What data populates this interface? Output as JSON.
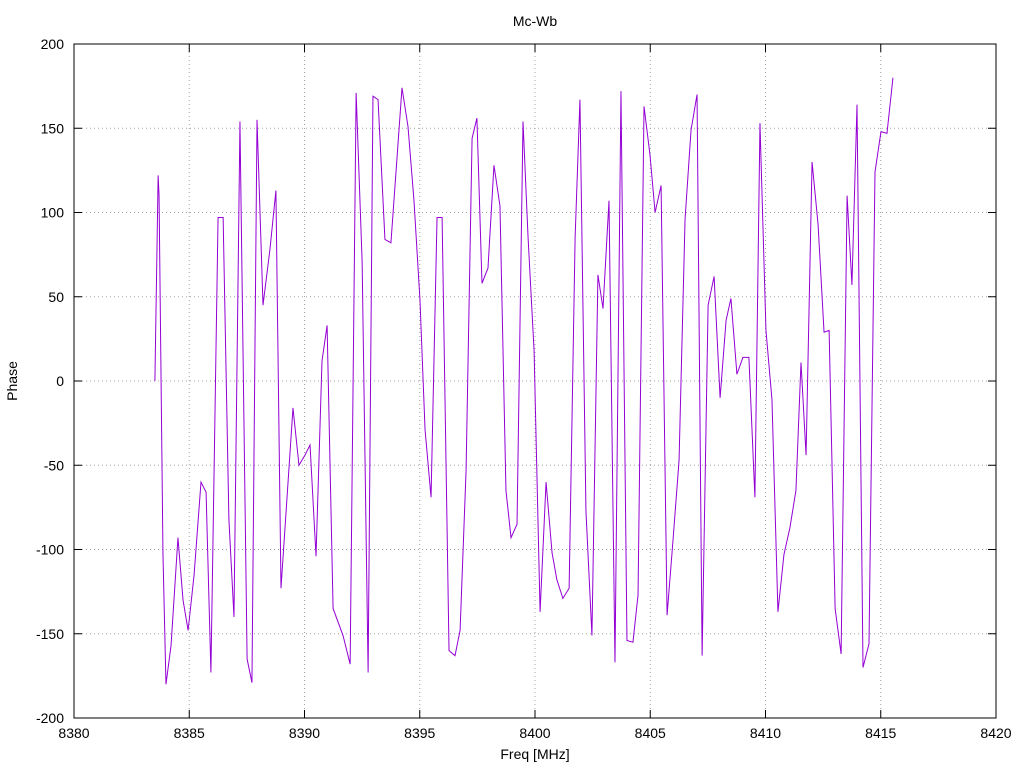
{
  "chart_data": {
    "type": "line",
    "title": "Mc-Wb",
    "x_label": "Freq [MHz]",
    "y_label": "Phase",
    "x": [
      8383.51,
      8383.65,
      8383.69,
      8383.86,
      8383.99,
      8384.21,
      8384.51,
      8384.73,
      8384.95,
      8385.21,
      8385.51,
      8385.73,
      8385.94,
      8386.25,
      8386.47,
      8386.72,
      8386.94,
      8387.2,
      8387.51,
      8387.72,
      8387.94,
      8388.2,
      8388.5,
      8388.76,
      8388.98,
      8389.5,
      8389.76,
      8390.02,
      8390.24,
      8390.5,
      8390.76,
      8390.98,
      8391.24,
      8391.67,
      8391.98,
      8392.24,
      8392.5,
      8392.76,
      8392.97,
      8393.19,
      8393.49,
      8393.75,
      8394.23,
      8394.49,
      8394.75,
      8395.01,
      8395.23,
      8395.49,
      8395.75,
      8395.97,
      8396.27,
      8396.53,
      8396.75,
      8397.01,
      8397.27,
      8397.48,
      8397.7,
      8397.96,
      8398.22,
      8398.48,
      8398.74,
      8398.96,
      8399.22,
      8399.48,
      8399.7,
      8399.96,
      8400.22,
      8400.48,
      8400.74,
      8400.95,
      8401.21,
      8401.48,
      8401.74,
      8401.95,
      8402.21,
      8402.47,
      8402.73,
      8402.95,
      8403.21,
      8403.47,
      8403.73,
      8403.99,
      8404.25,
      8404.47,
      8404.73,
      8404.99,
      8405.21,
      8405.47,
      8405.73,
      8405.99,
      8406.25,
      8406.51,
      8406.77,
      8407.03,
      8407.25,
      8407.51,
      8407.77,
      8408.03,
      8408.29,
      8408.5,
      8408.76,
      8409.02,
      8409.28,
      8409.54,
      8409.76,
      8410.02,
      8410.28,
      8410.54,
      8410.8,
      8411.06,
      8411.32,
      8411.54,
      8411.76,
      8412.02,
      8412.28,
      8412.54,
      8412.76,
      8413.02,
      8413.28,
      8413.54,
      8413.75,
      8413.97,
      8414.23,
      8414.49,
      8414.75,
      8415.01,
      8415.27,
      8415.53
    ],
    "series": [
      {
        "color": "#9400d3",
        "values": [
          0,
          122,
          110,
          -103,
          -180,
          -157,
          -93,
          -130,
          -148,
          -115,
          -60,
          -66,
          -173,
          97,
          97,
          -82,
          -140,
          154,
          -165,
          -179,
          155,
          45,
          78,
          113,
          -123,
          -16,
          -50,
          -44,
          -38,
          -104,
          12,
          33,
          -135,
          -151,
          -168,
          171,
          71,
          -173,
          169,
          167,
          84,
          82,
          174,
          151,
          107,
          48,
          -29,
          -69,
          97,
          97,
          -160,
          -163,
          -148,
          -53,
          144,
          156,
          58,
          67,
          128,
          104,
          -65,
          -93,
          -85,
          154,
          85,
          18,
          -137,
          -60,
          -102,
          -118,
          -129,
          -123,
          85,
          167,
          -77,
          -151,
          63,
          43,
          107,
          -167,
          172,
          -154,
          -155,
          -127,
          163,
          134,
          100,
          116,
          -139,
          -94,
          -47,
          96,
          149,
          170,
          -163,
          45,
          62,
          -10,
          36,
          49,
          4,
          14,
          14,
          -69,
          153,
          30,
          -11,
          -137,
          -103,
          -87,
          -65,
          11,
          -44,
          130,
          93,
          29,
          30,
          -135,
          -162,
          110,
          57,
          164,
          -170,
          -156,
          124,
          148,
          147,
          180
        ]
      }
    ],
    "xlim": [
      8380,
      8420
    ],
    "xticks": [
      8380,
      8385,
      8390,
      8395,
      8400,
      8405,
      8410,
      8415,
      8420
    ],
    "ylim": [
      -200,
      200
    ],
    "yticks": [
      -200,
      -150,
      -100,
      -50,
      0,
      50,
      100,
      150,
      200
    ],
    "grid": true
  }
}
